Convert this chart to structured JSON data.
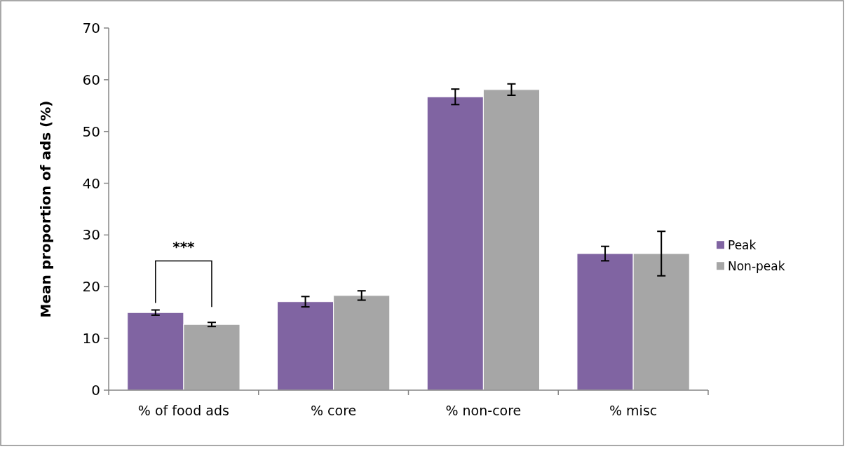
{
  "chart_data": {
    "type": "bar",
    "ylabel": "Mean proportion of ads (%)",
    "categories": [
      "% of food ads",
      "% core",
      "% non-core",
      "% misc"
    ],
    "series": [
      {
        "name": "Peak",
        "color": "#8064a2",
        "values": [
          15.0,
          17.1,
          56.7,
          26.4
        ],
        "errors": [
          0.5,
          1.0,
          1.5,
          1.4
        ]
      },
      {
        "name": "Non-peak",
        "color": "#a6a6a6",
        "values": [
          12.7,
          18.3,
          58.1,
          26.4
        ],
        "errors": [
          0.4,
          0.9,
          1.1,
          4.3
        ]
      }
    ],
    "ylim": [
      0,
      70
    ],
    "yticks": [
      0,
      10,
      20,
      30,
      40,
      50,
      60,
      70
    ],
    "grid": false,
    "legend": "right",
    "annotations": [
      "***"
    ]
  }
}
